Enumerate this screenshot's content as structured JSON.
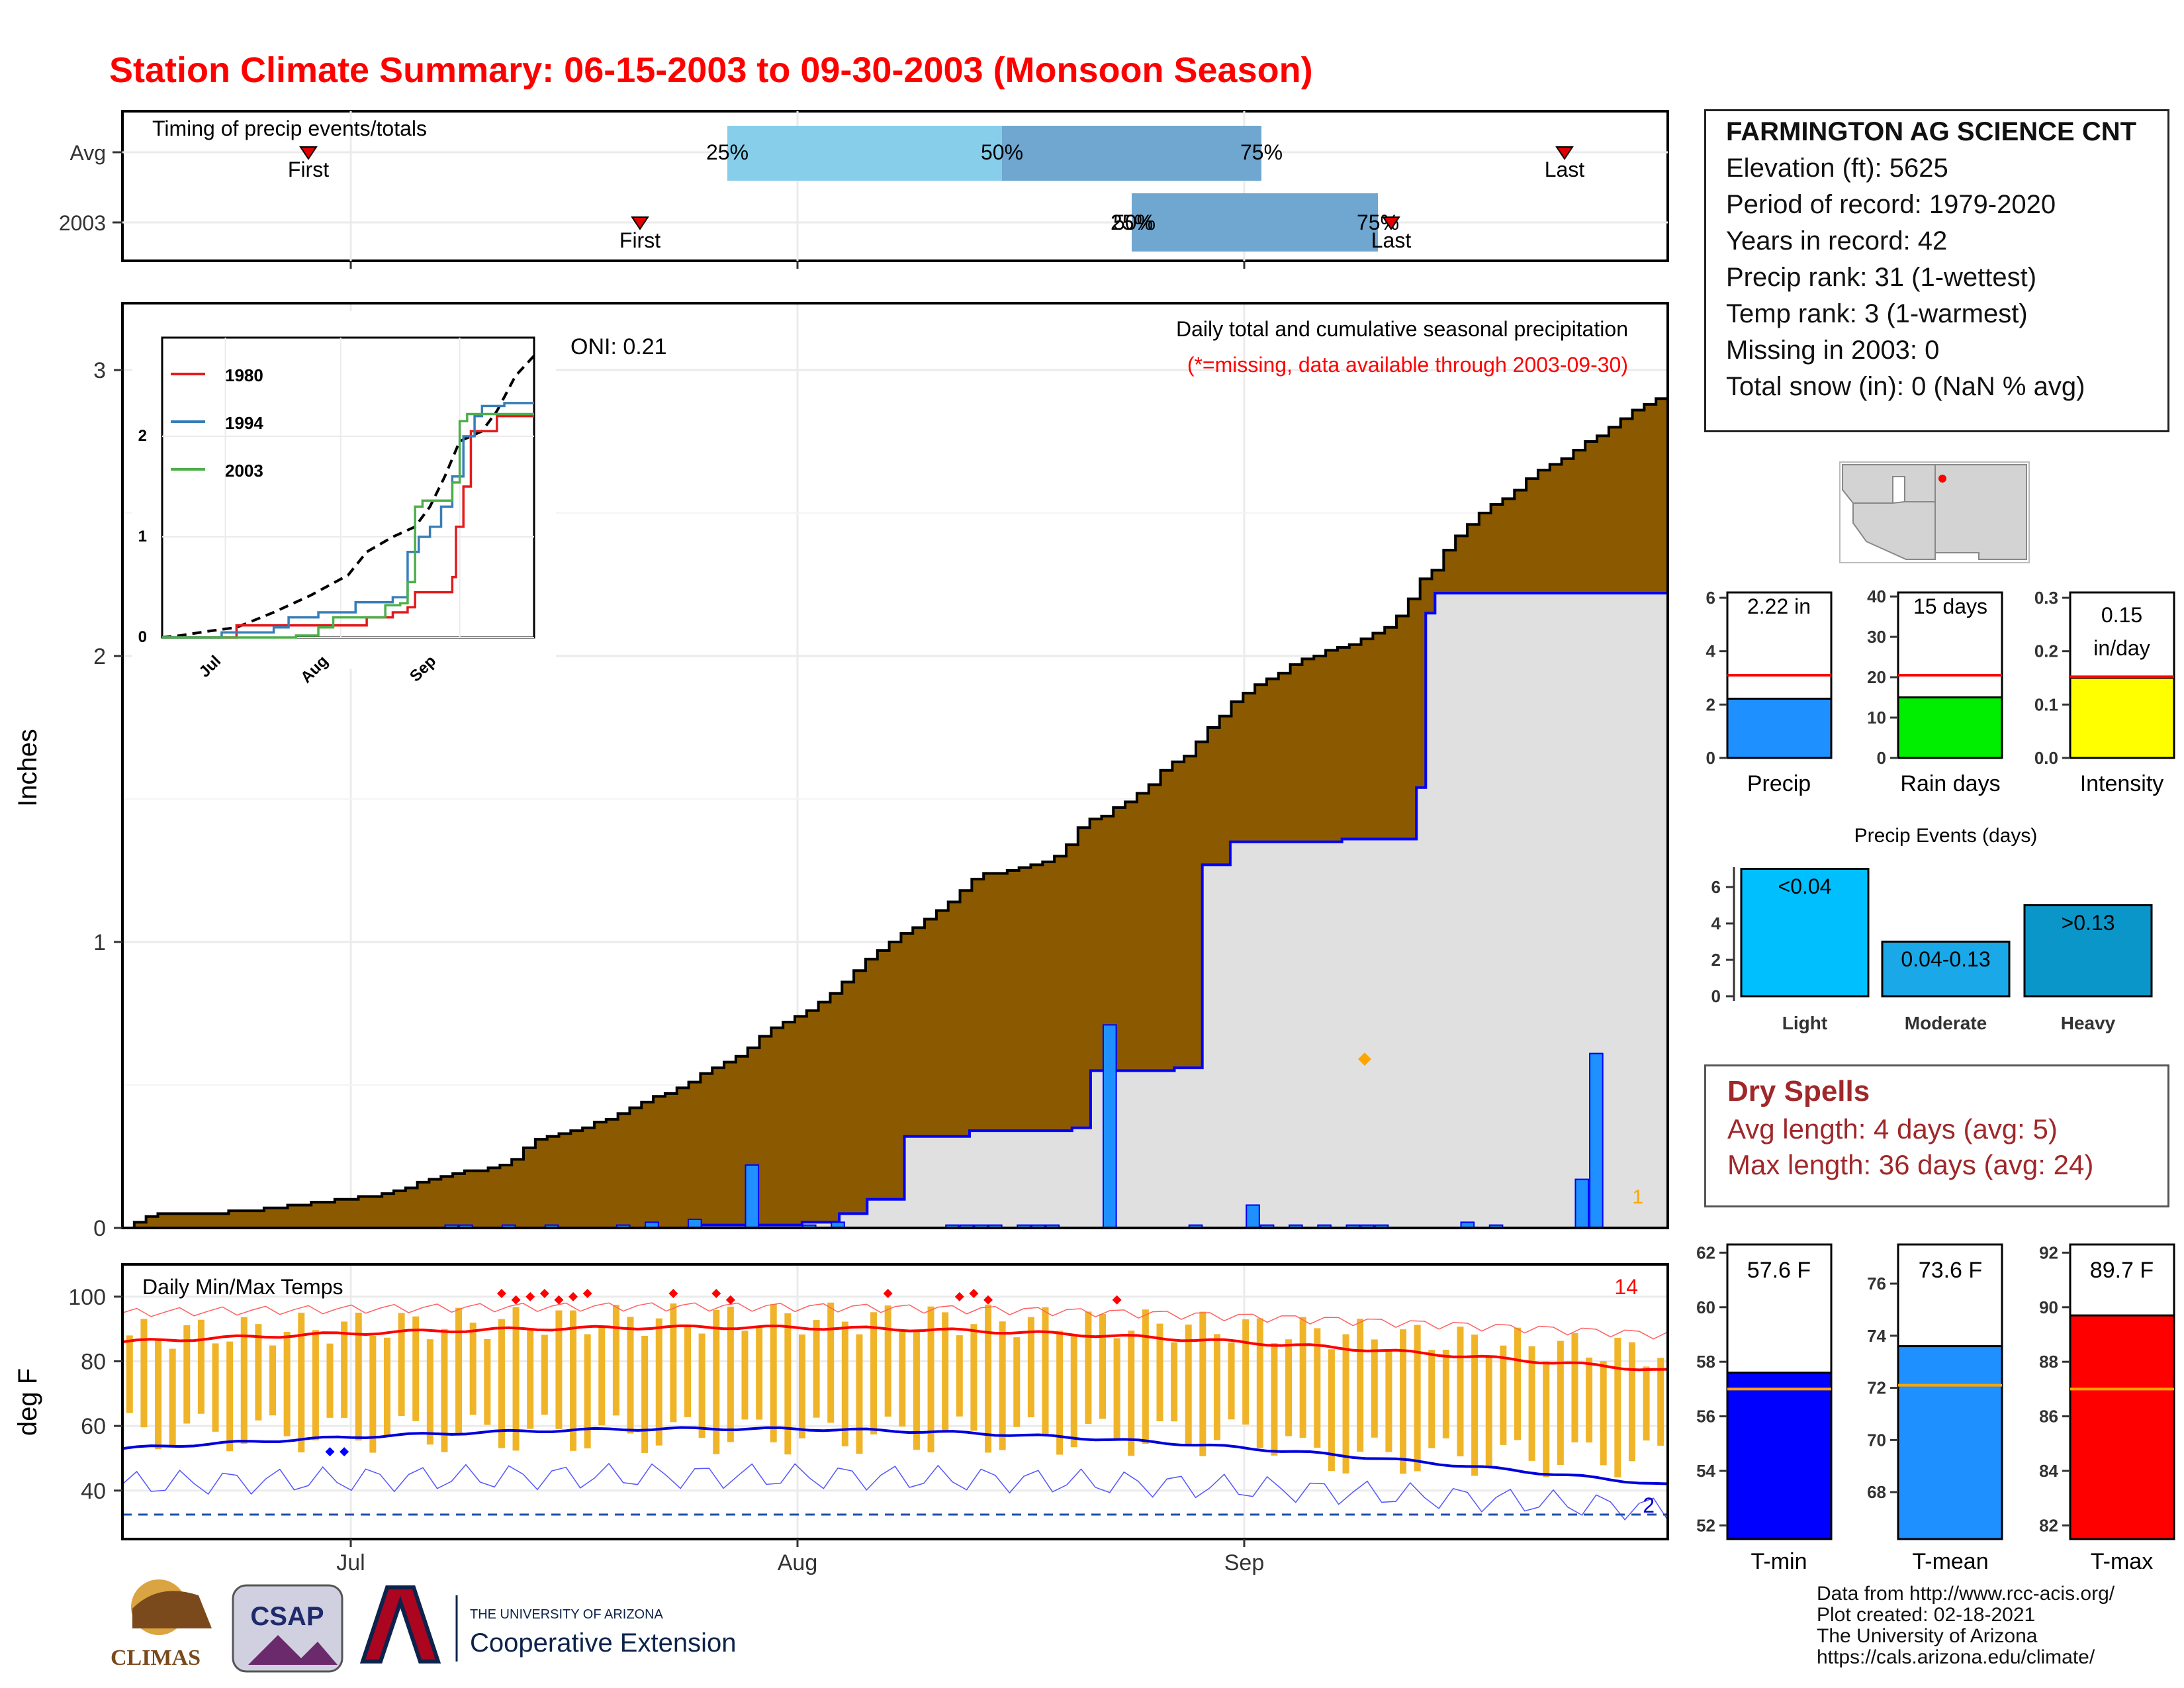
{
  "title": "Station Climate Summary: 06-15-2003 to 09-30-2003 (Monsoon Season)",
  "timing_panel": {
    "label": "Timing of precip events/totals",
    "rows": [
      "Avg",
      "2003"
    ],
    "avg": {
      "first_label": "First",
      "last_label": "Last",
      "pct_25": "25%",
      "pct_50": "50%",
      "pct_75": "75%"
    },
    "year": {
      "first_label": "First",
      "last_label": "Last",
      "pct_25": "25%",
      "pct_50": "50%",
      "pct_75": "75%"
    }
  },
  "main_panel": {
    "ylabel": "Inches",
    "yticks": [
      "0",
      "1",
      "2",
      "3"
    ],
    "oni": "ONI: 0.21",
    "caption": "Daily total and cumulative seasonal precipitation",
    "missing_note": "(*=missing, data available through 2003-09-30)",
    "corner_count": "1"
  },
  "inset": {
    "legend": [
      "1980",
      "1994",
      "2003"
    ],
    "yticks": [
      "0",
      "1",
      "2"
    ],
    "xticks": [
      "Jul",
      "Aug",
      "Sep"
    ]
  },
  "temp_panel": {
    "label": "Daily Min/Max Temps",
    "ylabel": "deg F",
    "yticks": [
      "40",
      "60",
      "80",
      "100"
    ],
    "record_high_count": "14",
    "record_low_count": "2"
  },
  "x_axis": {
    "ticks": [
      "Jul",
      "Aug",
      "Sep"
    ]
  },
  "station": {
    "name": "FARMINGTON AG SCIENCE CNT",
    "elevation": "Elevation (ft): 5625",
    "period": "Period of record: 1979-2020",
    "years": "Years in record: 42",
    "precip_rank": "Precip rank: 31 (1-wettest)",
    "temp_rank": "Temp rank: 3 (1-warmest)",
    "missing": "Missing in 2003: 0",
    "snow": "Total snow (in): 0 (NaN % avg)"
  },
  "summary_bars": {
    "precip": {
      "label": "Precip",
      "value_text": "2.22 in",
      "yticks": [
        "0",
        "2",
        "4",
        "6"
      ],
      "color": "#1e90ff"
    },
    "raindays": {
      "label": "Rain days",
      "value_text": "15 days",
      "yticks": [
        "0",
        "10",
        "20",
        "30",
        "40"
      ],
      "color": "#00ee00"
    },
    "intensity": {
      "label": "Intensity",
      "value_text": "0.15",
      "value_text2": "in/day",
      "yticks": [
        "0.0",
        "0.1",
        "0.2",
        "0.3"
      ],
      "color": "#ffff00"
    }
  },
  "events_panel": {
    "title": "Precip Events (days)",
    "yticks": [
      "0",
      "2",
      "4",
      "6"
    ],
    "bars": [
      {
        "name": "Light",
        "range": "<0.04",
        "color": "#00bfff"
      },
      {
        "name": "Moderate",
        "range": "0.04-0.13",
        "color": "#1aa8e8"
      },
      {
        "name": "Heavy",
        "range": ">0.13",
        "color": "#0a96c8"
      }
    ]
  },
  "dry_spells": {
    "title": "Dry Spells",
    "avg": "Avg length: 4 days (avg: 5)",
    "max": "Max length: 36 days (avg: 24)"
  },
  "temp_bars": {
    "tmin": {
      "label": "T-min",
      "value_text": "57.6 F",
      "yticks": [
        "52",
        "54",
        "56",
        "58",
        "60",
        "62"
      ],
      "color": "#0000ff"
    },
    "tmean": {
      "label": "T-mean",
      "value_text": "73.6 F",
      "yticks": [
        "68",
        "70",
        "72",
        "74",
        "76"
      ],
      "color": "#1e90ff"
    },
    "tmax": {
      "label": "T-max",
      "value_text": "89.7 F",
      "yticks": [
        "82",
        "84",
        "86",
        "88",
        "90",
        "92"
      ],
      "color": "#ff0000"
    }
  },
  "credits": {
    "line1": "Data from http://www.rcc-acis.org/",
    "line2": "Plot created: 02-18-2021",
    "line3": "The University of Arizona",
    "line4": "https://cals.arizona.edu/climate/"
  },
  "logos": {
    "climas": "CLIMAS",
    "csap": "CSAP",
    "ua_small": "THE UNIVERSITY OF ARIZONA",
    "ua_big": "Cooperative Extension"
  },
  "chart_data": [
    {
      "type": "area",
      "series": [
        {
          "name": "",
          "kind": "average cumulative precipitation (brown)",
          "values": [
            0.0,
            0.02,
            0.04,
            0.05,
            0.05,
            0.05,
            0.05,
            0.05,
            0.05,
            0.06,
            0.06,
            0.06,
            0.07,
            0.07,
            0.08,
            0.08,
            0.09,
            0.09,
            0.1,
            0.1,
            0.11,
            0.11,
            0.12,
            0.13,
            0.14,
            0.16,
            0.17,
            0.18,
            0.19,
            0.2,
            0.2,
            0.21,
            0.22,
            0.24,
            0.28,
            0.31,
            0.32,
            0.33,
            0.34,
            0.35,
            0.37,
            0.38,
            0.4,
            0.42,
            0.44,
            0.46,
            0.47,
            0.49,
            0.51,
            0.54,
            0.56,
            0.58,
            0.6,
            0.63,
            0.67,
            0.7,
            0.72,
            0.74,
            0.76,
            0.79,
            0.82,
            0.86,
            0.9,
            0.94,
            0.97,
            1.0,
            1.03,
            1.05,
            1.08,
            1.11,
            1.14,
            1.18,
            1.22,
            1.24,
            1.24,
            1.25,
            1.26,
            1.27,
            1.28,
            1.3,
            1.34,
            1.4,
            1.43,
            1.44,
            1.47,
            1.49,
            1.52,
            1.55,
            1.6,
            1.63,
            1.65,
            1.7,
            1.75,
            1.79,
            1.84,
            1.87,
            1.9,
            1.92,
            1.94,
            1.97,
            1.99,
            2.0,
            2.02,
            2.03,
            2.04,
            2.06,
            2.08,
            2.1,
            2.14,
            2.2,
            2.27,
            2.3,
            2.37,
            2.42,
            2.46,
            2.5,
            2.53,
            2.55,
            2.58,
            2.62,
            2.65,
            2.67,
            2.69,
            2.72,
            2.75,
            2.77,
            2.8,
            2.83,
            2.86,
            2.88,
            2.9,
            2.94
          ]
        },
        {
          "name": "",
          "kind": "2003 cumulative precipitation (blue)",
          "values": [
            0,
            0,
            0,
            0,
            0,
            0,
            0,
            0,
            0,
            0,
            0,
            0,
            0,
            0,
            0,
            0,
            0,
            0,
            0,
            0,
            0,
            0,
            0,
            0,
            0,
            0,
            0,
            0,
            0,
            0,
            0,
            0,
            0,
            0,
            0,
            0,
            0,
            0,
            0,
            0,
            0,
            0,
            0,
            0,
            0,
            0,
            0,
            0,
            0,
            0,
            0,
            0,
            0,
            0,
            0,
            0,
            0,
            0,
            0,
            0,
            0,
            0,
            0.01,
            0.01,
            0.01,
            0.01,
            0.01,
            0.01,
            0.01,
            0.01,
            0.01,
            0.01,
            0.01,
            0.02,
            0.02,
            0.02,
            0.02,
            0.05,
            0.05,
            0.05,
            0.1,
            0.1,
            0.1,
            0.1,
            0.32,
            0.32,
            0.32,
            0.32,
            0.32,
            0.32,
            0.32,
            0.34,
            0.34,
            0.34,
            0.34,
            0.34,
            0.34,
            0.34,
            0.34,
            0.34,
            0.34,
            0.34,
            0.35,
            0.35,
            0.55,
            0.55,
            0.55,
            0.55,
            0.55,
            0.55,
            0.55,
            0.55,
            0.55,
            0.56,
            0.56,
            0.56,
            1.27,
            1.27,
            1.27,
            1.35,
            1.35,
            1.35,
            1.35,
            1.35,
            1.35,
            1.35,
            1.35,
            1.35,
            1.35,
            1.35,
            1.35,
            1.36,
            1.36,
            1.36,
            1.36,
            1.36,
            1.36,
            1.36,
            1.36,
            1.54,
            2.15,
            2.22,
            2.22,
            2.22,
            2.22,
            2.22,
            2.22,
            2.22,
            2.22,
            2.22,
            2.22,
            2.22,
            2.22,
            2.22,
            2.22,
            2.22,
            2.22,
            2.22,
            2.22,
            2.22,
            2.22,
            2.22,
            2.22,
            2.22,
            2.22,
            2.22,
            2.22
          ]
        }
      ],
      "daily_bars_2003": {
        "x_days": [
          23,
          24,
          27,
          30,
          35,
          37,
          40,
          40,
          44,
          48,
          50,
          58,
          59,
          60,
          61,
          63,
          64,
          65,
          69,
          75,
          79,
          80,
          82,
          84,
          86,
          87,
          88,
          94,
          96,
          102,
          103
        ],
        "values": [
          0.01,
          0.01,
          0.01,
          0.01,
          0.01,
          0.02,
          0.03,
          0.03,
          0.22,
          0.01,
          0.02,
          0.01,
          0.01,
          0.01,
          0.01,
          0.01,
          0.01,
          0.01,
          0.71,
          0.01,
          0.08,
          0.01,
          0.01,
          0.01,
          0.01,
          0.01,
          0.01,
          0.02,
          0.01,
          0.17,
          0.61
        ]
      },
      "xlabel": "",
      "ylabel": "Inches",
      "ylim": [
        0,
        3.2
      ]
    },
    {
      "type": "line",
      "title": "inset",
      "series": [
        {
          "name": "1980",
          "color": "#e41a1c"
        },
        {
          "name": "1994",
          "color": "#377eb8"
        },
        {
          "name": "2003",
          "color": "#4daf4a"
        }
      ],
      "ylim": [
        0,
        2.9
      ]
    },
    {
      "type": "bar",
      "categories": [
        "Light",
        "Moderate",
        "Heavy"
      ],
      "values": [
        7,
        3,
        5
      ],
      "ylim": [
        0,
        7
      ]
    },
    {
      "type": "bar",
      "categories": [
        "Precip",
        "Rain days",
        "Intensity"
      ],
      "values": [
        2.22,
        15,
        0.15
      ],
      "averages": [
        3.1,
        20.5,
        0.152
      ]
    },
    {
      "type": "bar",
      "categories": [
        "T-min",
        "T-mean",
        "T-max"
      ],
      "values": [
        57.6,
        73.6,
        89.7
      ],
      "averages": [
        57.0,
        72.1,
        87.0
      ]
    }
  ]
}
